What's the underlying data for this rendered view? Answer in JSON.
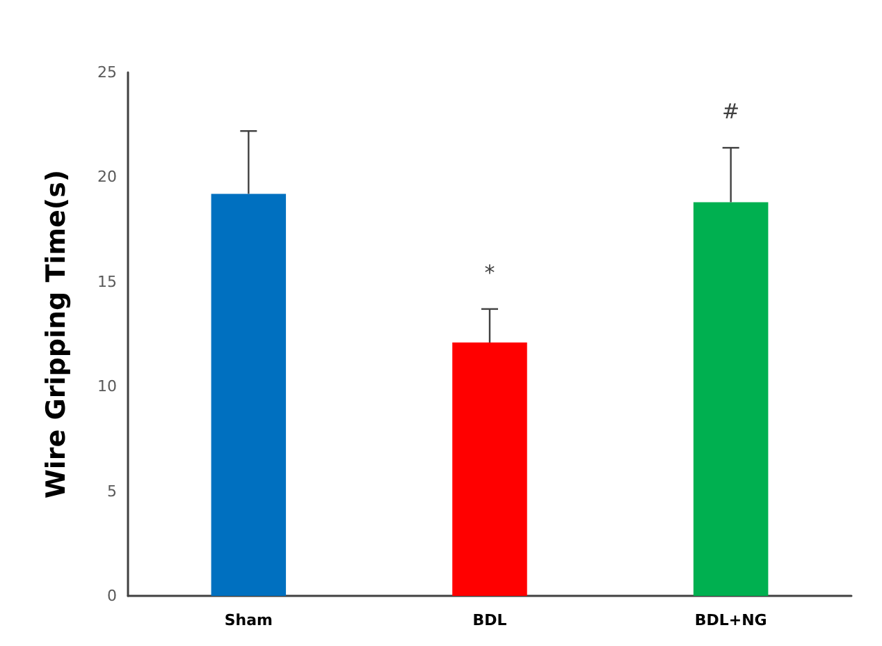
{
  "chart_data": {
    "type": "bar",
    "ylabel": "Wire Gripping Time(s)",
    "categories": [
      "Sham",
      "BDL",
      "BDL+NG"
    ],
    "values": [
      19.2,
      12.1,
      18.8
    ],
    "colors": [
      "#0070c0",
      "#ff0000",
      "#00b050"
    ],
    "errors": [
      3.0,
      1.6,
      2.6
    ],
    "ylim": [
      0,
      25
    ],
    "yticks": [
      0,
      5,
      10,
      15,
      20,
      25
    ],
    "grid": false,
    "annotations": [
      "*",
      "#"
    ]
  }
}
